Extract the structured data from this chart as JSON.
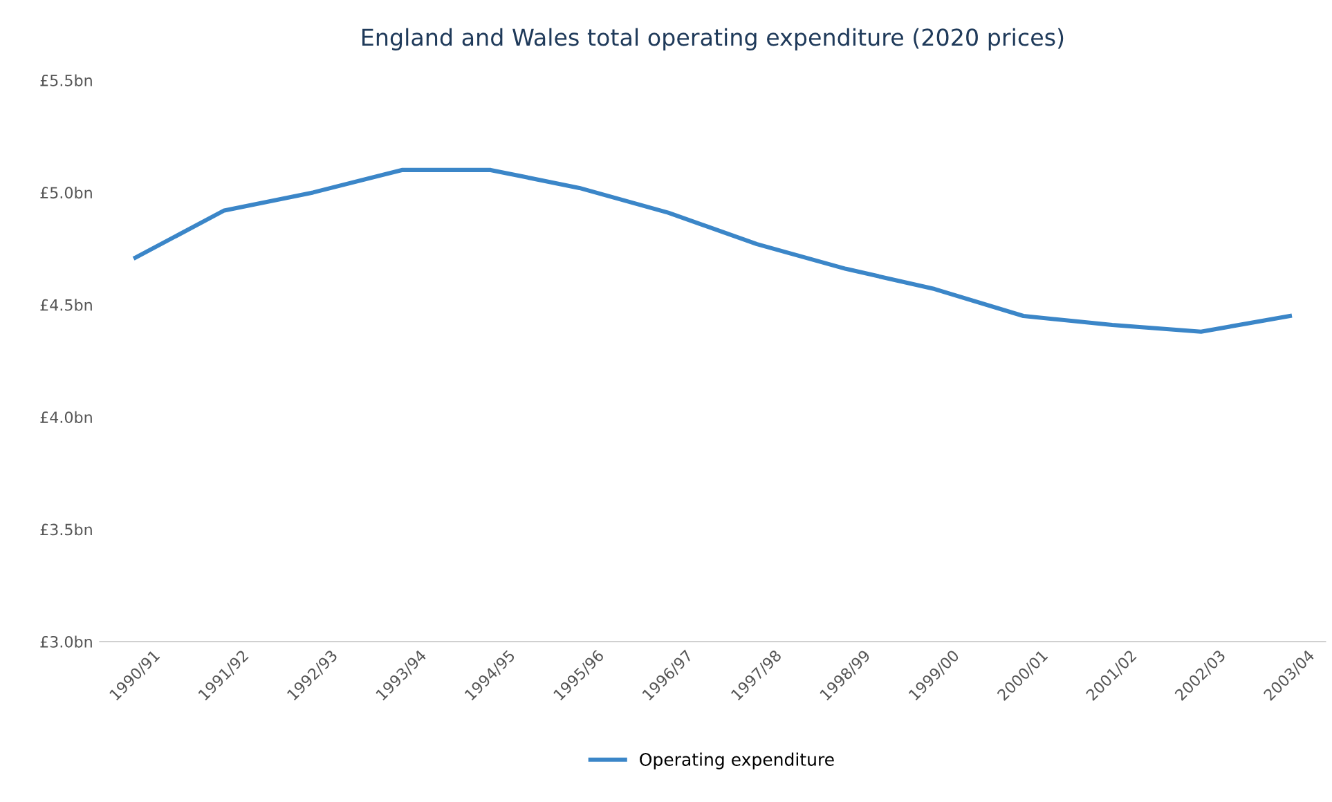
{
  "chart_data": {
    "type": "line",
    "title": "England and Wales total operating expenditure (2020 prices)",
    "categories": [
      "1990/91",
      "1991/92",
      "1992/93",
      "1993/94",
      "1994/95",
      "1995/96",
      "1996/97",
      "1997/98",
      "1998/99",
      "1999/00",
      "2000/01",
      "2001/02",
      "2002/03",
      "2003/04"
    ],
    "series": [
      {
        "name": "Operating expenditure",
        "color": "#3b86c8",
        "values": [
          4.71,
          4.92,
          5.0,
          5.1,
          5.1,
          5.02,
          4.91,
          4.77,
          4.66,
          4.57,
          4.45,
          4.41,
          4.38,
          4.45
        ]
      }
    ],
    "ylim": [
      3.0,
      5.5
    ],
    "yticks": [
      {
        "value": 3.0,
        "label": "£3.0bn"
      },
      {
        "value": 3.5,
        "label": "£3.5bn"
      },
      {
        "value": 4.0,
        "label": "£4.0bn"
      },
      {
        "value": 4.5,
        "label": "£4.5bn"
      },
      {
        "value": 5.0,
        "label": "£5.0bn"
      },
      {
        "value": 5.5,
        "label": "£5.5bn"
      }
    ],
    "legend": "bottom",
    "grid": false
  }
}
